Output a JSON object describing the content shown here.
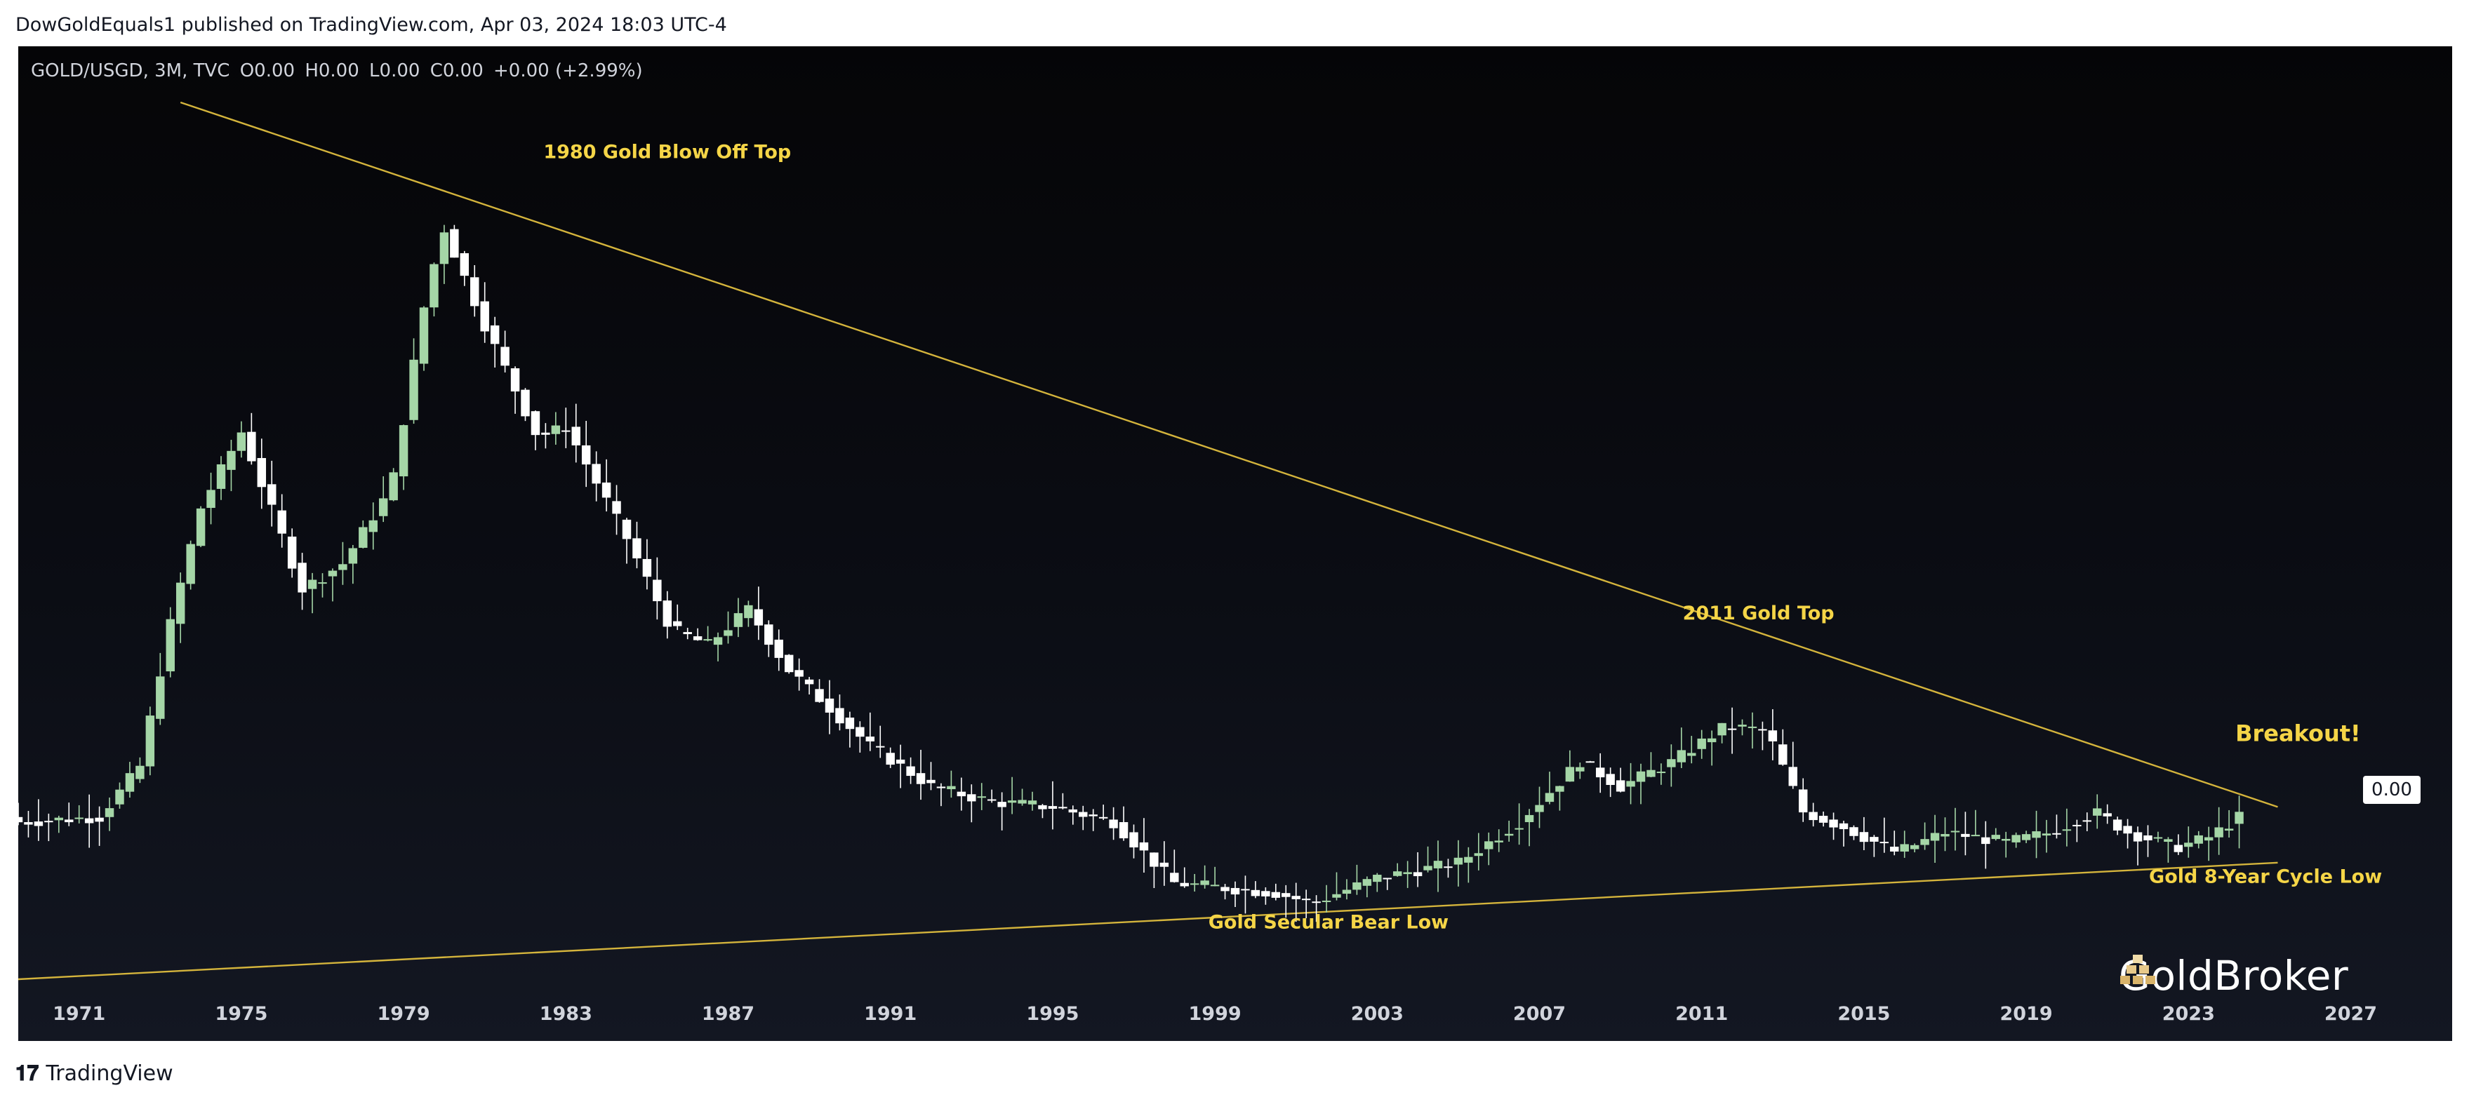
{
  "publisher_line": "DowGoldEquals1 published on TradingView.com, Apr 03, 2024 18:03 UTC-4",
  "legend": {
    "symbol": "GOLD/USGD, 3M, TVC",
    "open": "O0.00",
    "high": "H0.00",
    "low": "L0.00",
    "close": "C0.00",
    "change": "+0.00 (+2.99%)"
  },
  "price_tag": "0.00",
  "logo_text": "GoldBroker",
  "footer_brand": "TradingView",
  "colors": {
    "background_top": "#050507",
    "background_bottom": "#131722",
    "up_candle": "#a5d6a7",
    "down_candle": "#ffffff",
    "trendline": "#d4b43c",
    "annotation": "#f5d547",
    "axis_text": "#d1d4dc"
  },
  "chart_data": {
    "type": "candlestick",
    "title": "GOLD/USGD, 3M, TVC",
    "x_axis_ticks": [
      "1971",
      "1975",
      "1979",
      "1983",
      "1987",
      "1991",
      "1995",
      "1999",
      "2003",
      "2007",
      "2011",
      "2015",
      "2019",
      "2023",
      "2027"
    ],
    "x_range": [
      1969.5,
      2029.5
    ],
    "y_scale": "ratio",
    "grid": false,
    "annotations": [
      {
        "text": "1980 Gold Blow Off Top",
        "x": 1985.5,
        "level": 1.23
      },
      {
        "text": "2011 Gold Top",
        "x": 2012.4,
        "level": 0.32
      },
      {
        "text": "Breakout!",
        "x": 2025.7,
        "level": 0.08
      },
      {
        "text": "Gold 8-Year Cycle Low",
        "x": 2024.9,
        "level": -0.2
      },
      {
        "text": "Gold Secular Bear Low",
        "x": 2001.8,
        "level": -0.29
      }
    ],
    "trendlines": [
      {
        "name": "upper",
        "from": [
          1973.5,
          1.34
        ],
        "to": [
          2025.2,
          -0.05
        ]
      },
      {
        "name": "lower",
        "from": [
          1969.5,
          -0.39
        ],
        "to": [
          2025.2,
          -0.16
        ]
      }
    ],
    "key_points": [
      {
        "label": "1980 high",
        "x": 1980.0,
        "value": 1.2
      },
      {
        "label": "2001 low",
        "x": 2001.4,
        "value": -0.25
      },
      {
        "label": "2011 high",
        "x": 2011.6,
        "value": 0.37
      },
      {
        "label": "2022 low",
        "x": 2022.7,
        "value": -0.14
      },
      {
        "label": "last",
        "x": 2024.25,
        "value": 0.0
      }
    ]
  }
}
